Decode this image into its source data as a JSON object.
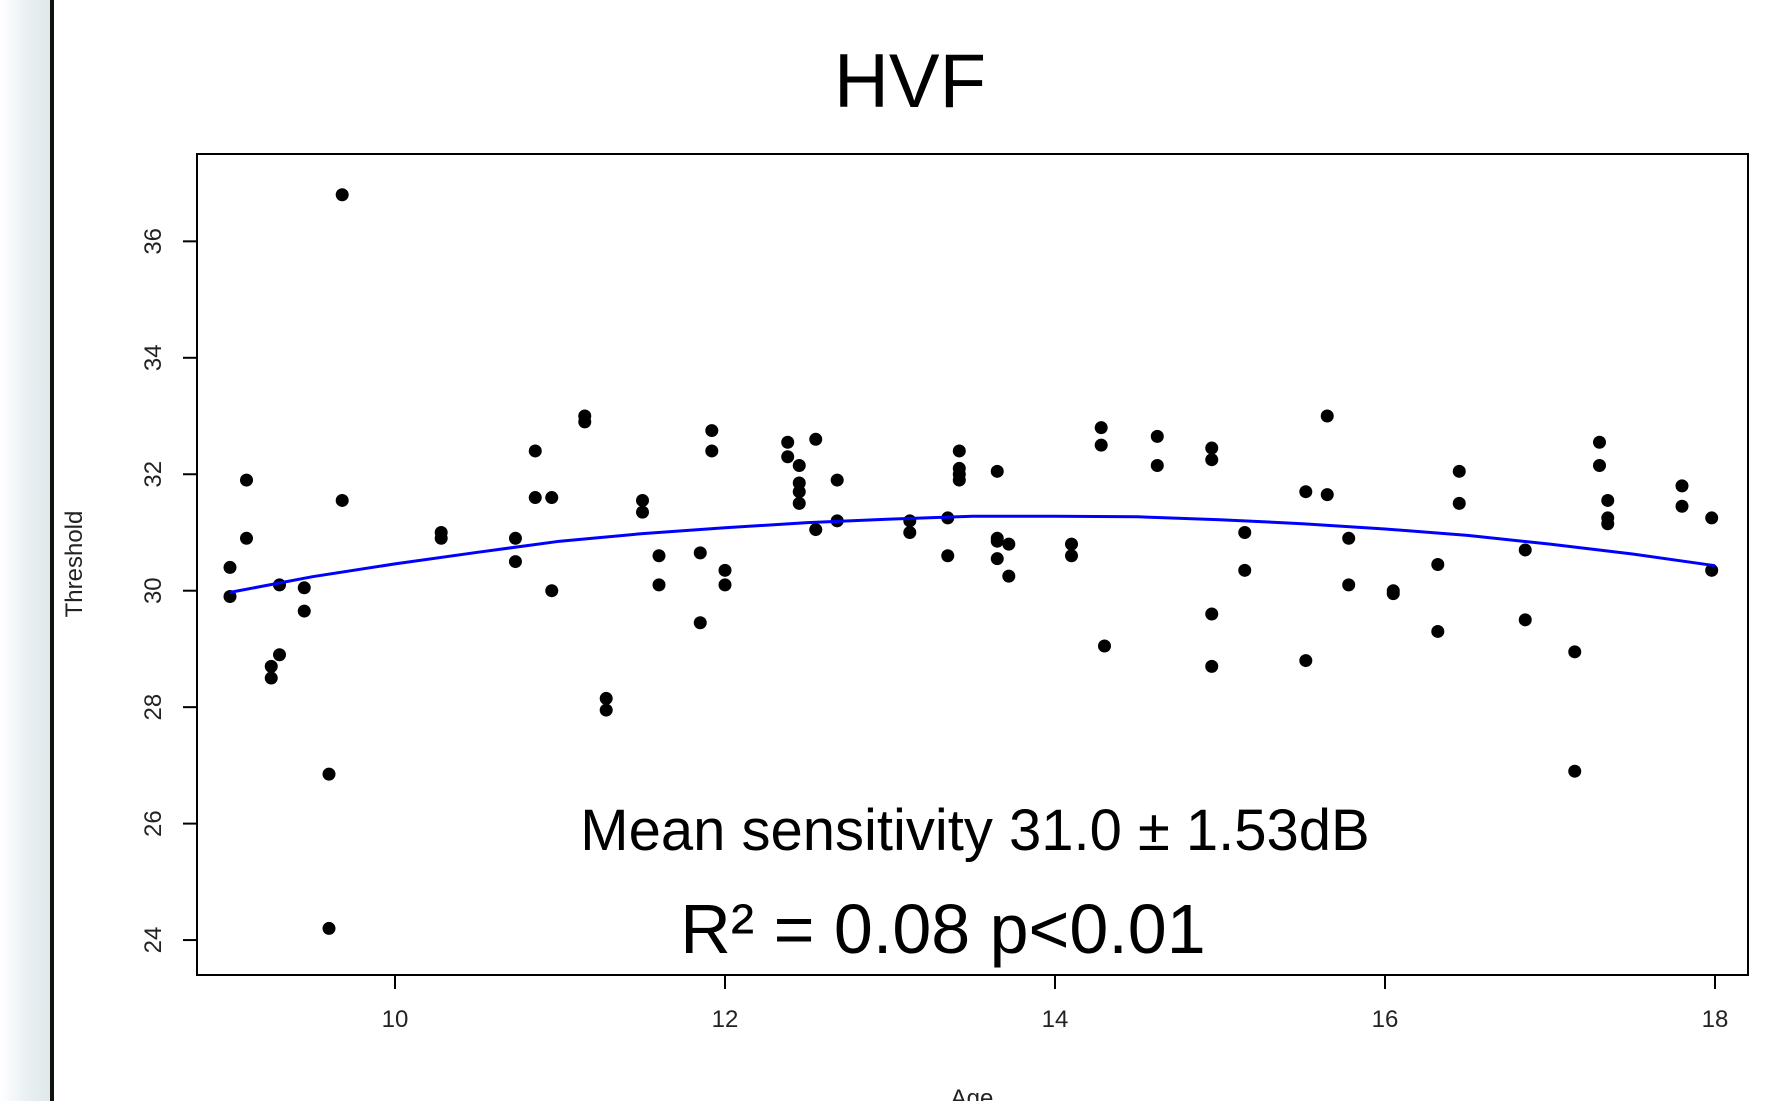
{
  "chart_data": {
    "type": "scatter",
    "title": "HVF",
    "xlabel": "Age",
    "ylabel": "Threshold",
    "xlim": [
      8.8,
      18.2
    ],
    "ylim": [
      23.4,
      37.5
    ],
    "x_ticks": [
      10,
      12,
      14,
      16,
      18
    ],
    "y_ticks": [
      24,
      26,
      28,
      30,
      32,
      34,
      36
    ],
    "grid": false,
    "annotations": [
      "Mean sensitivity 31.0 ± 1.53dB",
      "R² = 0.08 p<0.01"
    ],
    "colors": {
      "points": "#000000",
      "fit": "#0000ff"
    },
    "points": [
      [
        9.0,
        30.4
      ],
      [
        9.0,
        29.9
      ],
      [
        9.1,
        31.9
      ],
      [
        9.1,
        30.9
      ],
      [
        9.25,
        28.7
      ],
      [
        9.25,
        28.5
      ],
      [
        9.3,
        30.1
      ],
      [
        9.3,
        28.9
      ],
      [
        9.45,
        30.05
      ],
      [
        9.45,
        29.65
      ],
      [
        9.6,
        26.85
      ],
      [
        9.6,
        24.2
      ],
      [
        9.68,
        36.8
      ],
      [
        9.68,
        31.55
      ],
      [
        10.28,
        31.0
      ],
      [
        10.28,
        30.9
      ],
      [
        10.73,
        30.9
      ],
      [
        10.73,
        30.5
      ],
      [
        10.85,
        32.4
      ],
      [
        10.85,
        31.6
      ],
      [
        10.95,
        31.6
      ],
      [
        10.95,
        30.0
      ],
      [
        11.15,
        33.0
      ],
      [
        11.15,
        32.9
      ],
      [
        11.28,
        28.15
      ],
      [
        11.28,
        27.95
      ],
      [
        11.5,
        31.55
      ],
      [
        11.5,
        31.35
      ],
      [
        11.6,
        30.6
      ],
      [
        11.6,
        30.1
      ],
      [
        11.85,
        30.65
      ],
      [
        11.85,
        29.45
      ],
      [
        11.92,
        32.75
      ],
      [
        11.92,
        32.4
      ],
      [
        12.0,
        30.35
      ],
      [
        12.0,
        30.1
      ],
      [
        12.38,
        32.55
      ],
      [
        12.38,
        32.3
      ],
      [
        12.45,
        32.15
      ],
      [
        12.45,
        31.85
      ],
      [
        12.45,
        31.7
      ],
      [
        12.45,
        31.5
      ],
      [
        12.55,
        32.6
      ],
      [
        12.55,
        31.05
      ],
      [
        12.68,
        31.9
      ],
      [
        12.68,
        31.2
      ],
      [
        13.12,
        31.2
      ],
      [
        13.12,
        31.0
      ],
      [
        13.35,
        31.25
      ],
      [
        13.35,
        30.6
      ],
      [
        13.42,
        32.4
      ],
      [
        13.42,
        32.1
      ],
      [
        13.42,
        32.0
      ],
      [
        13.42,
        31.9
      ],
      [
        13.65,
        32.05
      ],
      [
        13.65,
        30.9
      ],
      [
        13.65,
        30.85
      ],
      [
        13.65,
        30.55
      ],
      [
        13.72,
        30.8
      ],
      [
        13.72,
        30.25
      ],
      [
        14.1,
        30.8
      ],
      [
        14.1,
        30.6
      ],
      [
        14.28,
        32.8
      ],
      [
        14.28,
        32.5
      ],
      [
        14.3,
        29.05
      ],
      [
        14.62,
        32.65
      ],
      [
        14.62,
        32.15
      ],
      [
        14.95,
        32.45
      ],
      [
        14.95,
        32.25
      ],
      [
        14.95,
        29.6
      ],
      [
        14.95,
        28.7
      ],
      [
        15.15,
        31.0
      ],
      [
        15.15,
        30.35
      ],
      [
        15.52,
        31.7
      ],
      [
        15.52,
        28.8
      ],
      [
        15.65,
        33.0
      ],
      [
        15.65,
        31.65
      ],
      [
        15.78,
        30.9
      ],
      [
        15.78,
        30.1
      ],
      [
        16.05,
        30.0
      ],
      [
        16.05,
        29.95
      ],
      [
        16.32,
        30.45
      ],
      [
        16.32,
        29.3
      ],
      [
        16.45,
        32.05
      ],
      [
        16.45,
        31.5
      ],
      [
        16.85,
        30.7
      ],
      [
        16.85,
        29.5
      ],
      [
        17.15,
        28.95
      ],
      [
        17.15,
        26.9
      ],
      [
        17.3,
        32.55
      ],
      [
        17.3,
        32.15
      ],
      [
        17.35,
        31.55
      ],
      [
        17.35,
        31.25
      ],
      [
        17.35,
        31.15
      ],
      [
        17.8,
        31.8
      ],
      [
        17.8,
        31.45
      ],
      [
        17.98,
        31.25
      ],
      [
        17.98,
        30.35
      ]
    ],
    "fit_curve": {
      "x": [
        9.0,
        9.5,
        10.0,
        10.5,
        11.0,
        11.5,
        12.0,
        12.5,
        13.0,
        13.5,
        14.0,
        14.5,
        15.0,
        15.5,
        16.0,
        16.5,
        17.0,
        17.5,
        18.0
      ],
      "y": [
        29.97,
        30.24,
        30.46,
        30.66,
        30.85,
        30.98,
        31.08,
        31.17,
        31.23,
        31.28,
        31.28,
        31.27,
        31.22,
        31.15,
        31.06,
        30.95,
        30.8,
        30.63,
        30.43
      ]
    }
  }
}
